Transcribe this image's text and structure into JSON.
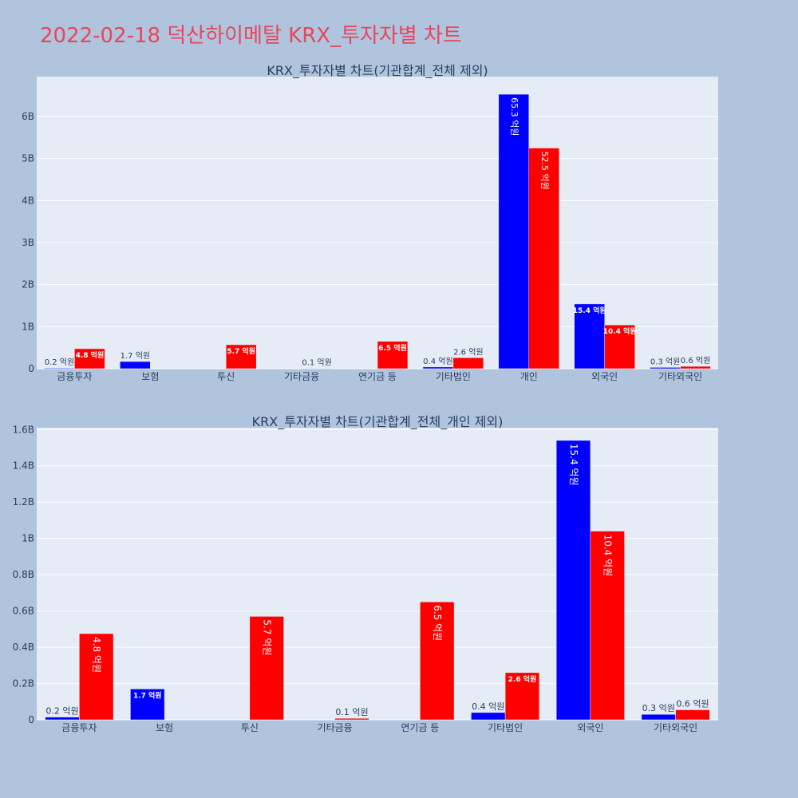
{
  "title": "2022-02-18 덕산하이메탈 KRX_투자자별 차트",
  "colors": {
    "background": "#b0c4de",
    "plot_bg": "#e5ecf6",
    "title": "#e8475a",
    "series_blue": "#0000ff",
    "series_red": "#ff0000"
  },
  "chart_data": [
    {
      "type": "bar",
      "title": "KRX_투자자별 차트(기관합계_전체 제외)",
      "categories": [
        "금융투자",
        "보험",
        "투신",
        "기타금융",
        "연기금 등",
        "기타법인",
        "개인",
        "외국인",
        "기타외국인"
      ],
      "series": [
        {
          "color": "#0000ff",
          "values": [
            15000000,
            170000000,
            0,
            0,
            0,
            40000000,
            6530000000,
            1540000000,
            30000000
          ],
          "labels": [
            "0.2 억원",
            "1.7 억원",
            "",
            "",
            "",
            "0.4 억원",
            "65.3 억원",
            "15.4 억원",
            "0.3 억원"
          ]
        },
        {
          "color": "#ff0000",
          "values": [
            475000000,
            0,
            570000000,
            8000000,
            650000000,
            260000000,
            5250000000,
            1040000000,
            55000000
          ],
          "labels": [
            "4.8 억원",
            "",
            "5.7 억원",
            "0.1 억원",
            "6.5 억원",
            "2.6 억원",
            "52.5 억원",
            "10.4 억원",
            "0.6 억원"
          ]
        }
      ],
      "yticks": [
        0,
        1000000000,
        2000000000,
        3000000000,
        4000000000,
        5000000000,
        6000000000
      ],
      "ytick_labels": [
        "0",
        "1B",
        "2B",
        "3B",
        "4B",
        "5B",
        "6B"
      ],
      "ylim": [
        0,
        6950000000
      ]
    },
    {
      "type": "bar",
      "title": "KRX_투자자별 차트(기관합계_전체_개인 제외)",
      "categories": [
        "금융투자",
        "보험",
        "투신",
        "기타금융",
        "연기금 등",
        "기타법인",
        "외국인",
        "기타외국인"
      ],
      "series": [
        {
          "color": "#0000ff",
          "values": [
            15000000,
            170000000,
            0,
            0,
            0,
            40000000,
            1540000000,
            30000000
          ],
          "labels": [
            "0.2 억원",
            "1.7 억원",
            "",
            "",
            "",
            "0.4 억원",
            "15.4 억원",
            "0.3 억원"
          ]
        },
        {
          "color": "#ff0000",
          "values": [
            475000000,
            0,
            570000000,
            8000000,
            650000000,
            260000000,
            1040000000,
            55000000
          ],
          "labels": [
            "4.8 억원",
            "",
            "5.7 억원",
            "0.1 억원",
            "6.5 억원",
            "2.6 억원",
            "10.4 억원",
            "0.6 억원"
          ]
        }
      ],
      "yticks": [
        0,
        200000000,
        400000000,
        600000000,
        800000000,
        1000000000,
        1200000000,
        1400000000,
        1600000000
      ],
      "ytick_labels": [
        "0",
        "0.2B",
        "0.4B",
        "0.6B",
        "0.8B",
        "1B",
        "1.2B",
        "1.4B",
        "1.6B"
      ],
      "ylim": [
        0,
        1610000000
      ]
    }
  ]
}
